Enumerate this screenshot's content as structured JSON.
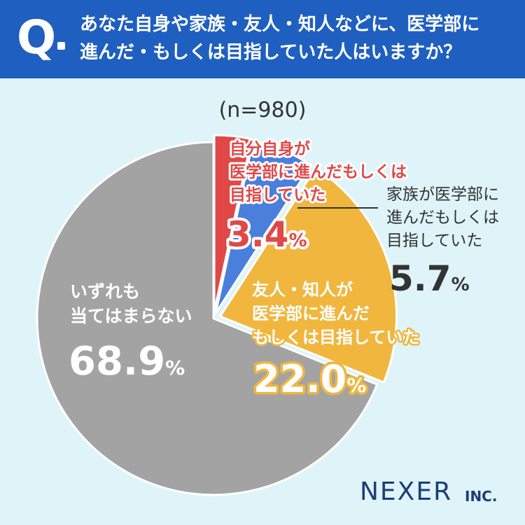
{
  "header": {
    "q_letter": "Q",
    "question_line1": "あなた自身や家族・友人・知人などに、医学部に",
    "question_line2": "進んだ・もしくは目指していた人はいますか？"
  },
  "sample_size": "(n=980)",
  "logo": {
    "main": "NEXER",
    "sub": "INC."
  },
  "colors": {
    "header_bg": "#1f5fc0",
    "background": "#dff4f8",
    "self": "#e04848",
    "family": "#4a7fdc",
    "friends": "#f0b63e",
    "none": "#a3a3a3",
    "logo": "#1c3d78"
  },
  "chart_data": {
    "type": "pie",
    "start": "top, clockwise",
    "slices": [
      {
        "label_lines": [
          "自分自身が",
          "医学部に進んだもしくは",
          "目指していた"
        ],
        "value": 3.4,
        "percent_text": "3.4",
        "color": "#e04848"
      },
      {
        "label_lines": [
          "家族が医学部に",
          "進んだもしくは",
          "目指していた"
        ],
        "value": 5.7,
        "percent_text": "5.7",
        "color": "#4a7fdc"
      },
      {
        "label_lines": [
          "友人・知人が",
          "医学部に進んだ",
          "もしくは目指していた"
        ],
        "value": 22.0,
        "percent_text": "22.0",
        "color": "#f0b63e"
      },
      {
        "label_lines": [
          "いずれも",
          "当てはまらない"
        ],
        "value": 68.9,
        "percent_text": "68.9",
        "color": "#a3a3a3"
      }
    ],
    "percent_sign": "%"
  }
}
